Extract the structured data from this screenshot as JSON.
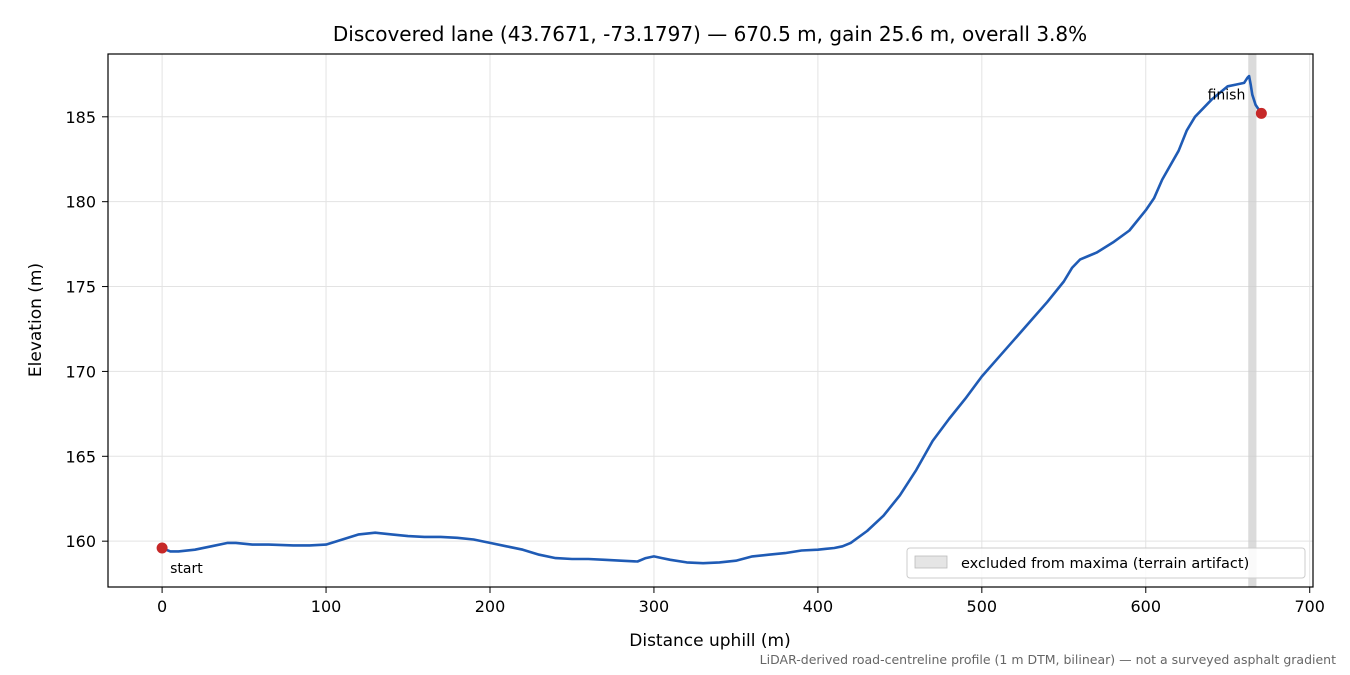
{
  "chart_data": {
    "type": "line",
    "title": "Discovered lane (43.7671, -73.1797) — 670.5 m, gain 25.6 m, overall 3.8%",
    "xlabel": "Distance uphill (m)",
    "ylabel": "Elevation (m)",
    "xlim": [
      -33,
      702
    ],
    "ylim": [
      157.3,
      188.7
    ],
    "xticks": [
      0,
      100,
      200,
      300,
      400,
      500,
      600,
      700
    ],
    "yticks": [
      160,
      165,
      170,
      175,
      180,
      185
    ],
    "xtick_labels": [
      "0",
      "100",
      "200",
      "300",
      "400",
      "500",
      "600",
      "700"
    ],
    "ytick_labels": [
      "160",
      "165",
      "170",
      "175",
      "180",
      "185"
    ],
    "grid": true,
    "legend_position": "lower-right",
    "line_color": "#1f5bb5",
    "marker_color": "#c62828",
    "shade_color": "#cccccc",
    "series": [
      {
        "x": [
          0,
          5,
          10,
          20,
          30,
          40,
          45,
          55,
          65,
          80,
          90,
          100,
          110,
          120,
          130,
          140,
          150,
          160,
          170,
          180,
          190,
          200,
          210,
          220,
          230,
          240,
          250,
          260,
          270,
          280,
          290,
          295,
          300,
          305,
          310,
          320,
          330,
          340,
          350,
          360,
          370,
          380,
          390,
          400,
          405,
          410,
          415,
          420,
          430,
          440,
          450,
          460,
          470,
          480,
          490,
          500,
          510,
          520,
          530,
          540,
          550,
          555,
          560,
          565,
          570,
          580,
          590,
          600,
          605,
          610,
          620,
          625,
          630,
          640,
          650,
          655,
          660,
          662,
          663,
          664,
          665,
          667,
          670.5
        ],
        "y": [
          159.6,
          159.4,
          159.4,
          159.5,
          159.7,
          159.9,
          159.9,
          159.8,
          159.8,
          159.75,
          159.75,
          159.8,
          160.1,
          160.4,
          160.5,
          160.4,
          160.3,
          160.25,
          160.25,
          160.2,
          160.1,
          159.9,
          159.7,
          159.5,
          159.2,
          159.0,
          158.95,
          158.95,
          158.9,
          158.85,
          158.8,
          159.0,
          159.1,
          159.0,
          158.9,
          158.75,
          158.7,
          158.75,
          158.85,
          159.1,
          159.2,
          159.3,
          159.45,
          159.5,
          159.55,
          159.6,
          159.7,
          159.9,
          160.6,
          161.5,
          162.7,
          164.2,
          165.9,
          167.2,
          168.4,
          169.7,
          170.8,
          171.9,
          173.0,
          174.1,
          175.3,
          176.1,
          176.6,
          176.8,
          177.0,
          177.6,
          178.3,
          179.5,
          180.2,
          181.3,
          183.0,
          184.2,
          185.0,
          186.0,
          186.8,
          186.9,
          187.0,
          187.3,
          187.4,
          186.9,
          186.3,
          185.7,
          185.2
        ]
      }
    ],
    "markers": [
      {
        "label": "start",
        "x": 0,
        "y": 159.6
      },
      {
        "label": "finish",
        "x": 670.5,
        "y": 185.2
      }
    ],
    "shaded_band": {
      "x0": 662.5,
      "x1": 667.5,
      "label": "excluded from maxima (terrain artifact)"
    },
    "footnote": "LiDAR-derived road-centreline profile (1 m DTM, bilinear) — not a surveyed asphalt gradient"
  }
}
